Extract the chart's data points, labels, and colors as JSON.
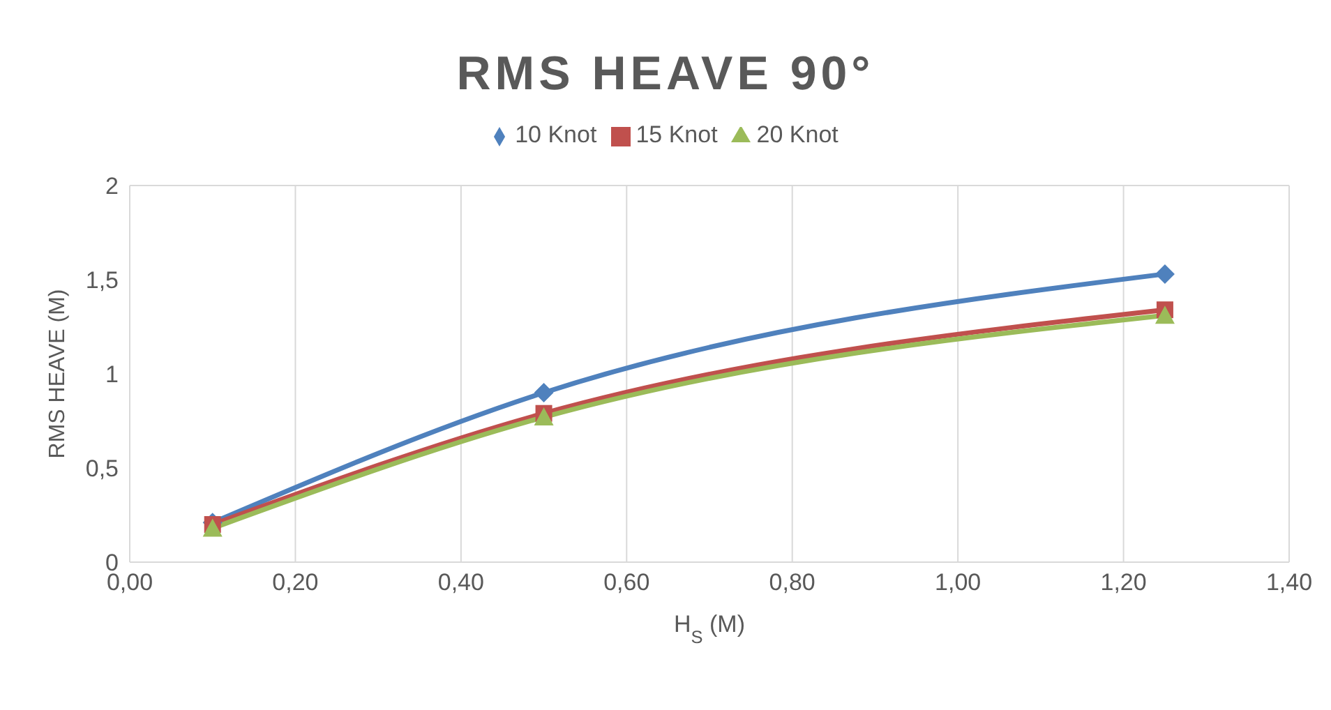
{
  "chart_data": {
    "type": "line",
    "title": "RMS HEAVE 90°",
    "xlabel": "H$_{S}$ (M)",
    "ylabel": "RMS HEAVE (M)",
    "x": [
      0.1,
      0.5,
      1.25
    ],
    "series": [
      {
        "name": "10 Knot",
        "color": "#4f81bd",
        "marker": "diamond",
        "values": [
          0.21,
          0.9,
          1.53
        ]
      },
      {
        "name": "15 Knot",
        "color": "#c0504d",
        "marker": "square",
        "values": [
          0.2,
          0.79,
          1.34
        ]
      },
      {
        "name": "20 Knot",
        "color": "#9bbb59",
        "marker": "triangle",
        "values": [
          0.18,
          0.77,
          1.31
        ]
      }
    ],
    "xlim": [
      0,
      1.4
    ],
    "xticks": [
      {
        "value": 0,
        "label": "0,00"
      },
      {
        "value": 0.2,
        "label": "0,20"
      },
      {
        "value": 0.4,
        "label": "0,40"
      },
      {
        "value": 0.6,
        "label": "0,60"
      },
      {
        "value": 0.8,
        "label": "0,80"
      },
      {
        "value": 1,
        "label": "1,00"
      },
      {
        "value": 1.2,
        "label": "1,20"
      },
      {
        "value": 1.4,
        "label": "1,40"
      }
    ],
    "ylim": [
      0,
      2
    ],
    "yticks": [
      0,
      {
        "value": 0.5,
        "label": "0,5"
      },
      1,
      {
        "value": 1.5,
        "label": "1,5"
      },
      2
    ],
    "grid": true,
    "legend": "top"
  }
}
